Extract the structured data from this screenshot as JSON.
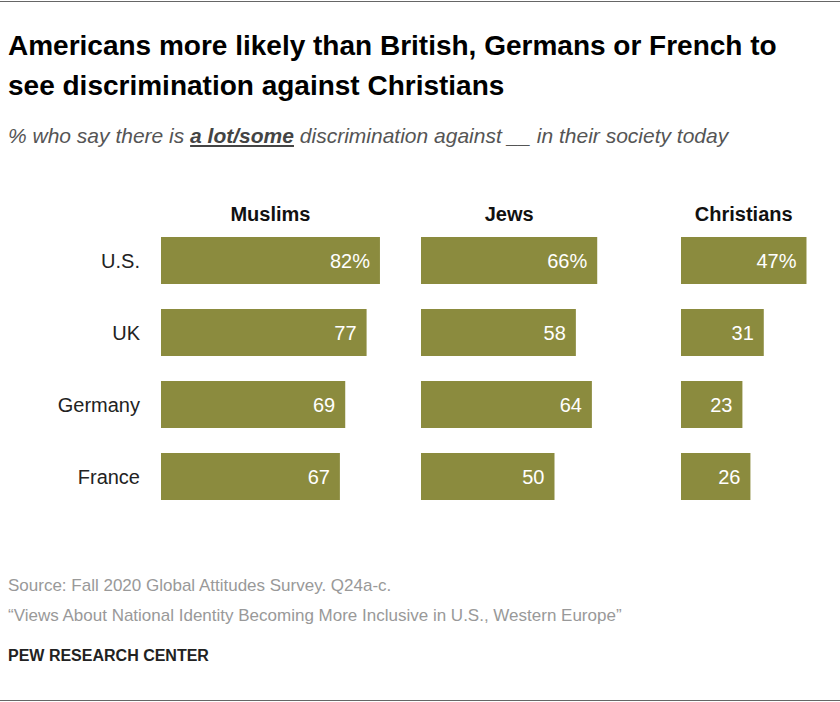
{
  "header": {
    "title": "Americans more likely than British, Germans or French to see discrimination against Christians",
    "subtitle_parts": [
      "% who say there is ",
      "a lot/some",
      " discrimination against __ in their society today"
    ]
  },
  "chart_data": {
    "type": "bar",
    "orientation": "horizontal",
    "categories": [
      "U.S.",
      "UK",
      "Germany",
      "France"
    ],
    "series": [
      {
        "name": "Muslims",
        "values": [
          82,
          77,
          69,
          67
        ],
        "value_labels": [
          "82%",
          "77",
          "69",
          "67"
        ]
      },
      {
        "name": "Jews",
        "values": [
          66,
          58,
          64,
          50
        ],
        "value_labels": [
          "66%",
          "58",
          "64",
          "50"
        ]
      },
      {
        "name": "Christians",
        "values": [
          47,
          31,
          23,
          26
        ],
        "value_labels": [
          "47%",
          "31",
          "23",
          "26"
        ]
      }
    ],
    "color": "#8b8b3e",
    "ylim": [
      0,
      100
    ],
    "data_labels": true,
    "tick_labels": "x"
  },
  "footer": {
    "source": "Source: Fall 2020 Global Attitudes Survey. Q24a-c.",
    "report": "“Views About National Identity Becoming More Inclusive in U.S., Western Europe”",
    "publisher": "PEW RESEARCH CENTER"
  }
}
